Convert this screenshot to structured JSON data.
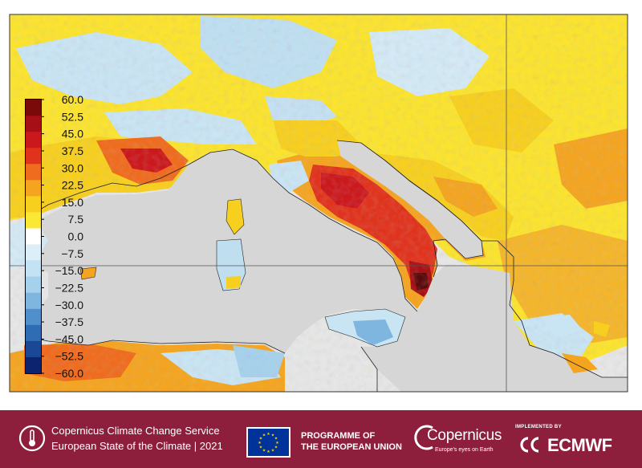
{
  "colorbar": {
    "ticks": [
      "60.0",
      "52.5",
      "45.0",
      "37.5",
      "30.0",
      "22.5",
      "15.0",
      "7.5",
      "0.0",
      "−7.5",
      "−15.0",
      "−22.5",
      "−30.0",
      "−37.5",
      "−45.0",
      "−52.5",
      "−60.0"
    ],
    "colors": [
      "#7a0a0a",
      "#a50f15",
      "#cb181d",
      "#e0331d",
      "#ef6b1d",
      "#f4a41f",
      "#f7cf1e",
      "#fbe834",
      "#ffffff",
      "#dceef7",
      "#c3e2f3",
      "#a6d1ec",
      "#7fb6e0",
      "#4f90cc",
      "#2f6cb3",
      "#1b4797",
      "#0c2470"
    ]
  },
  "colors": {
    "sea": "#d6d6d6",
    "coast": "#222222",
    "footer_bg": "#8d1f3c"
  },
  "footer": {
    "service_line1": "Copernicus Climate Change Service",
    "service_line2": "European State of the Climate | 2021",
    "programme_line1": "PROGRAMME OF",
    "programme_line2": "THE EUROPEAN UNION",
    "copernicus_logo": "Copernicus",
    "copernicus_tagline": "Europe's eyes on Earth",
    "implemented_by": "IMPLEMENTED BY",
    "ecmwf": "ECMWF"
  },
  "icons": [
    "thermometer-circle-icon",
    "eu-flag-icon",
    "copernicus-logo",
    "ecmwf-logo"
  ]
}
